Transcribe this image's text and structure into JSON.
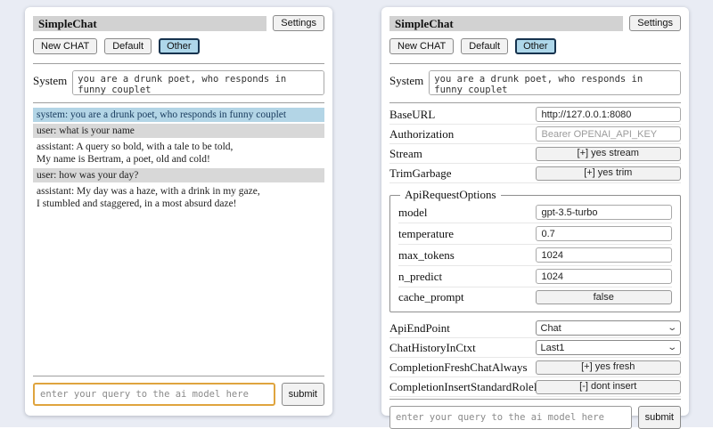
{
  "common": {
    "app_title": "SimpleChat",
    "settings_button": "Settings",
    "new_chat_button": "New CHAT",
    "session_default": "Default",
    "session_other": "Other",
    "system_label": "System",
    "system_prompt": "you are a drunk poet, who responds in funny couplet",
    "query_placeholder": "enter your query to the ai model here",
    "submit_button": "submit"
  },
  "chat": {
    "messages": [
      {
        "role": "system",
        "text": "system: you are a drunk poet, who responds in funny couplet"
      },
      {
        "role": "user",
        "text": "user: what is your name"
      },
      {
        "role": "assistant",
        "text": "assistant: A query so bold, with a tale to be told,\nMy name is Bertram, a poet, old and cold!"
      },
      {
        "role": "user",
        "text": "user: how was your day?"
      },
      {
        "role": "assistant",
        "text": "assistant: My day was a haze, with a drink in my gaze,\nI stumbled and staggered, in a most absurd daze!"
      }
    ]
  },
  "settings": {
    "base_url": {
      "label": "BaseURL",
      "value": "http://127.0.0.1:8080"
    },
    "authorization": {
      "label": "Authorization",
      "placeholder": "Bearer OPENAI_API_KEY"
    },
    "stream": {
      "label": "Stream",
      "button": "[+] yes stream"
    },
    "trim_garbage": {
      "label": "TrimGarbage",
      "button": "[+] yes trim"
    },
    "api_request_options": {
      "legend": "ApiRequestOptions",
      "model": {
        "label": "model",
        "value": "gpt-3.5-turbo"
      },
      "temperature": {
        "label": "temperature",
        "value": "0.7"
      },
      "max_tokens": {
        "label": "max_tokens",
        "value": "1024"
      },
      "n_predict": {
        "label": "n_predict",
        "value": "1024"
      },
      "cache_prompt": {
        "label": "cache_prompt",
        "button": "false"
      }
    },
    "api_endpoint": {
      "label": "ApiEndPoint",
      "value": "Chat"
    },
    "chat_history_in_ctxt": {
      "label": "ChatHistoryInCtxt",
      "value": "Last1"
    },
    "completion_fresh_chat_always": {
      "label": "CompletionFreshChatAlways",
      "button": "[+] yes fresh"
    },
    "completion_insert_standard_role_prefix": {
      "label": "CompletionInsertStandardRolePrefix",
      "button": "[-] dont insert"
    }
  },
  "colors": {
    "page_bg": "#e9ecf4",
    "title_bar": "#d2d2d2",
    "active_session_bg": "#aed7ea",
    "active_session_border": "#16334e",
    "system_msg_bg": "#b3d5e6",
    "user_msg_bg": "#d8d8d8",
    "focused_input_border": "#dfa43e"
  }
}
